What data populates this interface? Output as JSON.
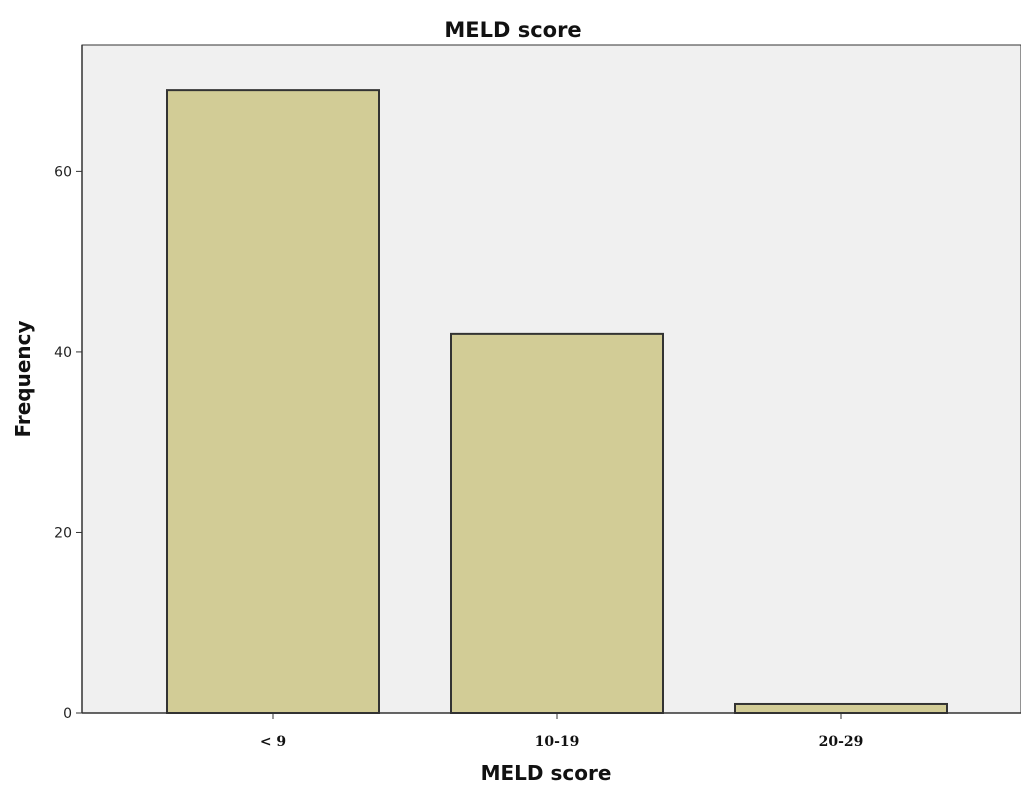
{
  "chart_data": {
    "type": "bar",
    "title": "MELD score",
    "xlabel": "MELD score",
    "ylabel": "Frequency",
    "categories": [
      "< 9",
      "10-19",
      "20-29"
    ],
    "values": [
      69,
      42,
      1
    ],
    "ylim": [
      0,
      74
    ],
    "yticks": [
      "0",
      "20",
      "40",
      "60"
    ],
    "ytick_values": [
      0,
      20,
      40,
      60
    ],
    "grid": false,
    "legend": "none"
  },
  "colors": {
    "plot_background": "#f0f0f0",
    "bar_fill": "#d2cc96",
    "bar_stroke": "#333333",
    "axis": "#333333"
  }
}
